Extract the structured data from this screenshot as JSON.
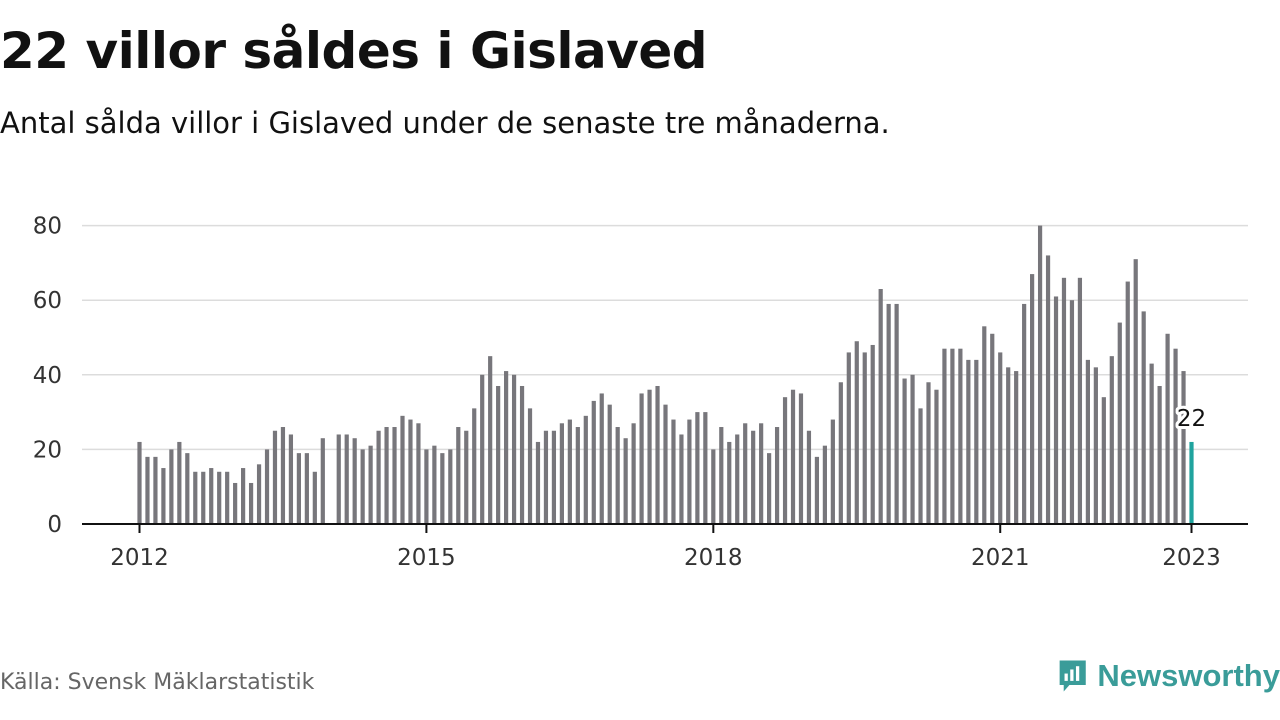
{
  "header": {
    "title": "22 villor såldes i Gislaved",
    "subtitle": "Antal sålda villor i Gislaved under de senaste tre månaderna."
  },
  "footer": {
    "source": "Källa: Svensk Mäklarstatistik",
    "brand": "Newsworthy",
    "brand_icon": "newsworthy-logo-icon"
  },
  "colors": {
    "bar": "#77767b",
    "highlight": "#20a39e",
    "grid": "#dcdcdc",
    "axis": "#111111",
    "brand": "#3a9c99"
  },
  "chart_data": {
    "type": "bar",
    "title": "22 villor såldes i Gislaved",
    "subtitle": "Antal sålda villor i Gislaved under de senaste tre månaderna.",
    "x_start": "2012-01",
    "x_end": "2023-01",
    "x_ticks": [
      "2012",
      "2015",
      "2018",
      "2021",
      "2023"
    ],
    "y_ticks": [
      0,
      20,
      40,
      60,
      80
    ],
    "ylim": [
      0,
      80
    ],
    "grid": true,
    "highlight_last": true,
    "annotation": "22",
    "values": [
      22,
      18,
      18,
      15,
      20,
      22,
      19,
      14,
      14,
      15,
      14,
      14,
      11,
      15,
      11,
      16,
      20,
      25,
      26,
      24,
      19,
      19,
      14,
      23,
      null,
      24,
      24,
      23,
      20,
      21,
      25,
      26,
      26,
      29,
      28,
      27,
      20,
      21,
      19,
      20,
      26,
      25,
      31,
      40,
      45,
      37,
      41,
      40,
      37,
      31,
      22,
      25,
      25,
      27,
      28,
      26,
      29,
      33,
      35,
      32,
      26,
      23,
      27,
      35,
      36,
      37,
      32,
      28,
      24,
      28,
      30,
      30,
      20,
      26,
      22,
      24,
      27,
      25,
      27,
      19,
      26,
      34,
      36,
      35,
      25,
      18,
      21,
      28,
      38,
      46,
      49,
      46,
      48,
      63,
      59,
      59,
      39,
      40,
      31,
      38,
      36,
      47,
      47,
      47,
      44,
      44,
      53,
      51,
      46,
      42,
      41,
      59,
      67,
      80,
      72,
      61,
      66,
      60,
      66,
      44,
      42,
      34,
      45,
      54,
      65,
      71,
      57,
      43,
      37,
      51,
      47,
      41,
      22
    ]
  }
}
